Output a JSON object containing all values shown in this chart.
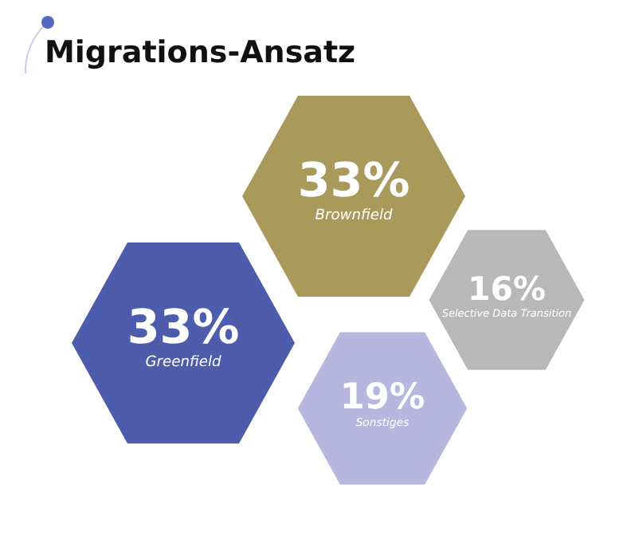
{
  "chart_data": {
    "type": "other",
    "title": "Migrations-Ansatz",
    "categories": [
      "Brownfield",
      "Selective Data Transition",
      "Greenfield",
      "Sonstiges"
    ],
    "values": [
      33,
      16,
      33,
      19
    ],
    "value_labels": [
      "33%",
      "16%",
      "33%",
      "19%"
    ],
    "colors": [
      "#a99a5c",
      "#b8b8b8",
      "#4d5cab",
      "#b6b6de"
    ],
    "data_labels": true
  }
}
